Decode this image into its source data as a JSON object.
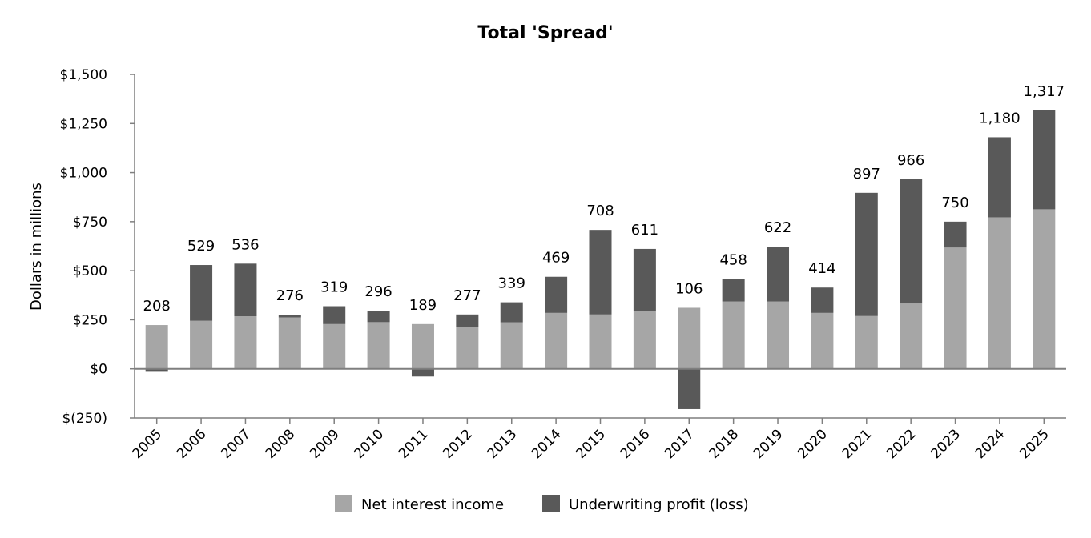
{
  "chart_data": {
    "type": "bar",
    "stacked": true,
    "title": "Total 'Spread'",
    "xlabel": "",
    "ylabel": "Dollars in millions",
    "ylim": [
      -250,
      1500
    ],
    "yticks": [
      -250,
      0,
      250,
      500,
      750,
      1000,
      1250,
      1500
    ],
    "ytick_labels": [
      "$(250)",
      "$0",
      "$250",
      "$500",
      "$750",
      "$1,000",
      "$1,250",
      "$1,500"
    ],
    "grid": false,
    "legend_position": "bottom",
    "categories": [
      "2005",
      "2006",
      "2007",
      "2008",
      "2009",
      "2010",
      "2011",
      "2012",
      "2013",
      "2014",
      "2015",
      "2016",
      "2017",
      "2018",
      "2019",
      "2020",
      "2021",
      "2022",
      "2023",
      "2024",
      "2025"
    ],
    "series": [
      {
        "name": "Net interest income",
        "color": "#a6a6a6",
        "values": [
          223,
          245,
          268,
          262,
          228,
          238,
          228,
          213,
          237,
          285,
          277,
          295,
          311,
          343,
          343,
          285,
          269,
          333,
          618,
          772,
          813
        ]
      },
      {
        "name": "Underwriting profit (loss)",
        "color": "#595959",
        "values": [
          -15,
          284,
          268,
          14,
          91,
          58,
          -39,
          64,
          102,
          184,
          431,
          316,
          -205,
          115,
          279,
          129,
          628,
          633,
          132,
          408,
          504
        ]
      }
    ],
    "total_labels": [
      "208",
      "529",
      "536",
      "276",
      "319",
      "296",
      "189",
      "277",
      "339",
      "469",
      "708",
      "611",
      "106",
      "458",
      "622",
      "414",
      "897",
      "966",
      "750",
      "1,180",
      "1,317"
    ],
    "totals": [
      208,
      529,
      536,
      276,
      319,
      296,
      189,
      277,
      339,
      469,
      708,
      611,
      106,
      458,
      622,
      414,
      897,
      966,
      750,
      1180,
      1317
    ]
  },
  "legend": {
    "items": [
      {
        "label": "Net interest income",
        "color": "#a6a6a6"
      },
      {
        "label": "Underwriting profit (loss)",
        "color": "#595959"
      }
    ]
  },
  "colors": {
    "axis": "#7f7f7f",
    "positive_base": "#a6a6a6",
    "overlay": "#595959"
  }
}
